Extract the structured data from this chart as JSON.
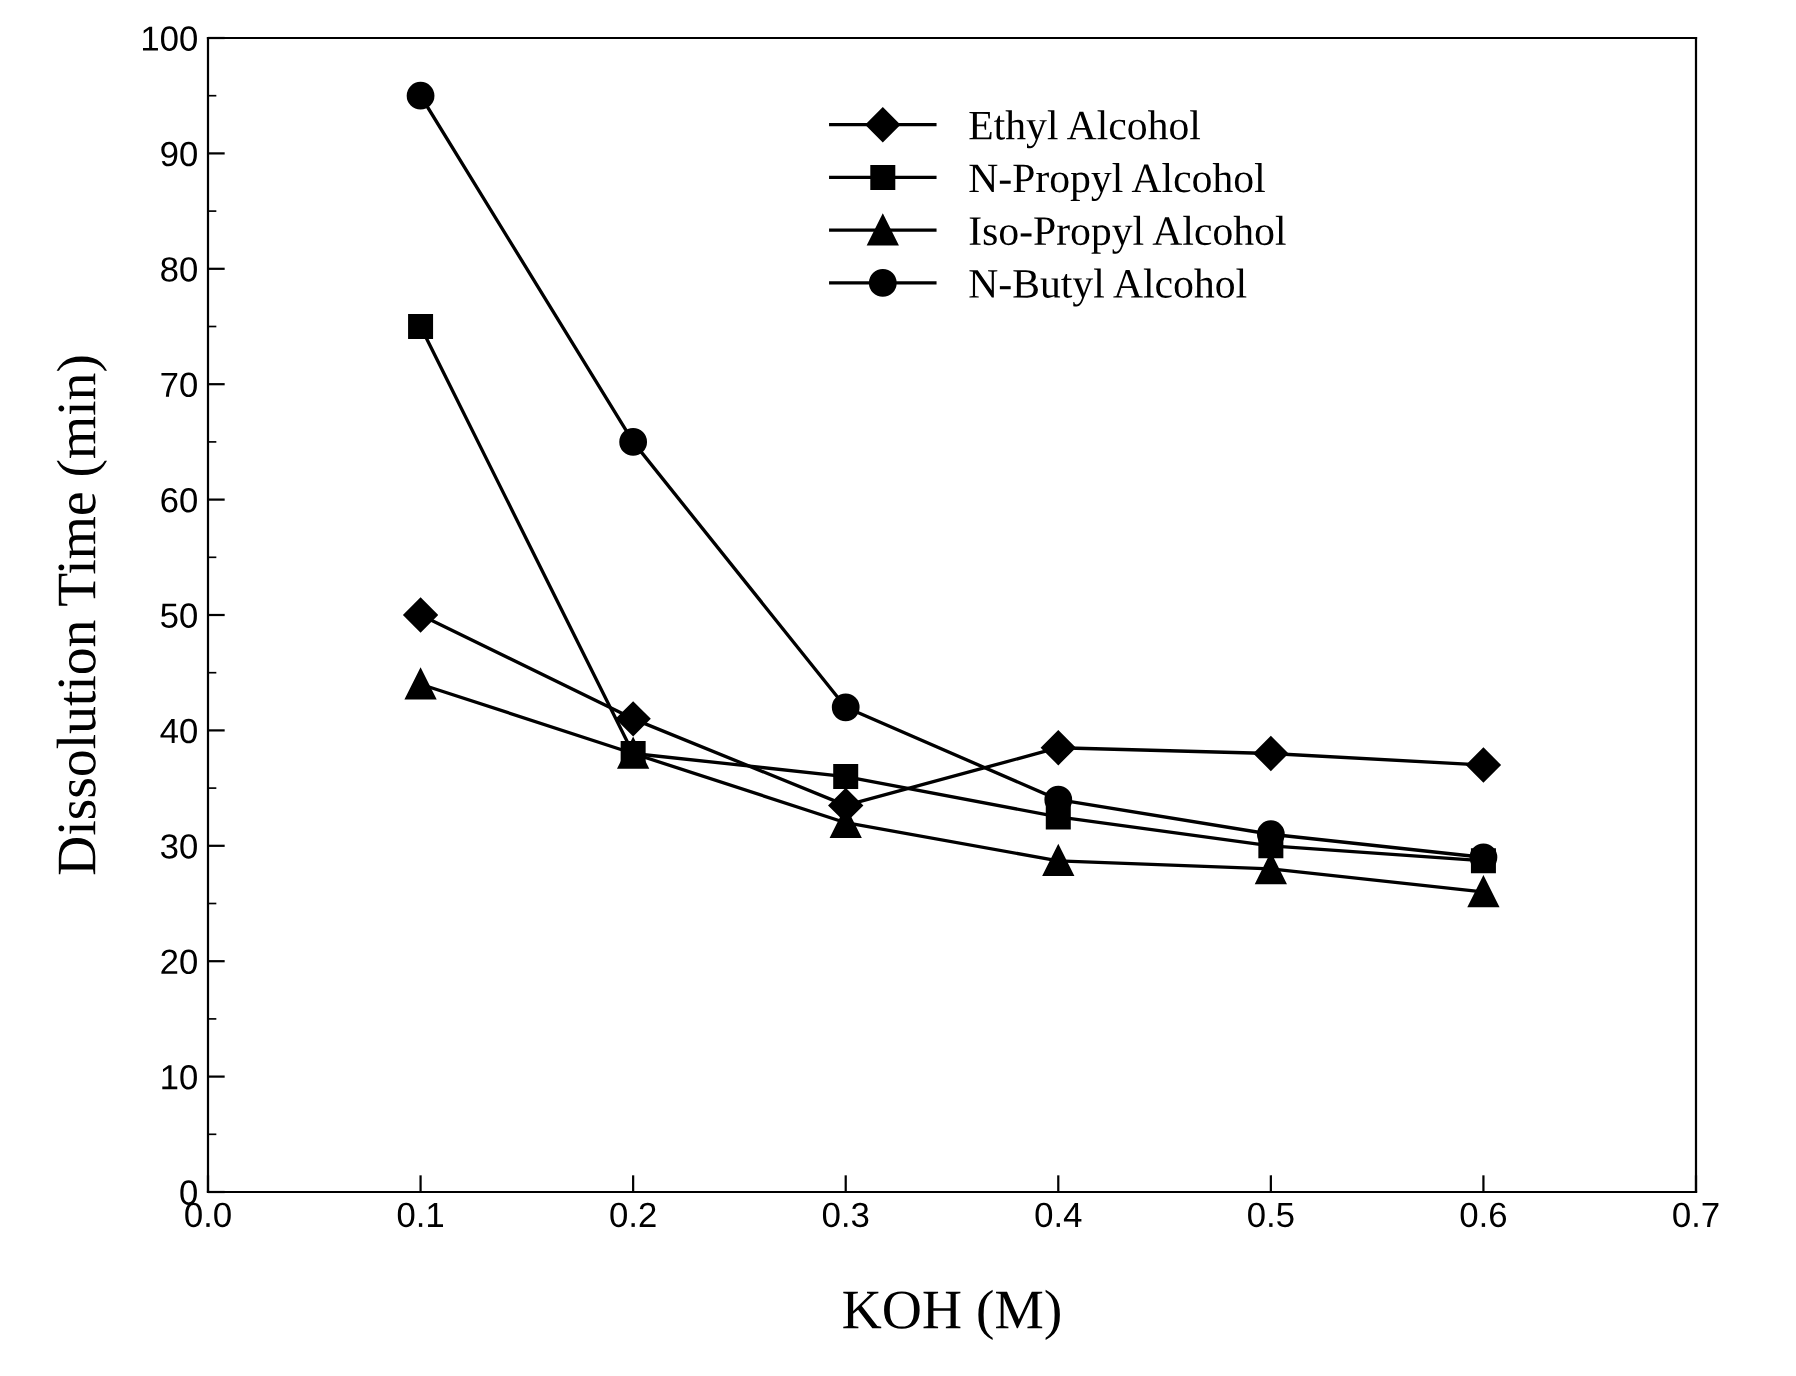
{
  "chart_data": {
    "type": "line",
    "xlabel": "KOH (M)",
    "ylabel": "Dissolution Time (min)",
    "x": [
      0.1,
      0.2,
      0.3,
      0.4,
      0.5,
      0.6
    ],
    "series": [
      {
        "name": "Ethyl Alcohol",
        "color": "#000000",
        "marker": "diamond",
        "values": [
          50,
          41,
          33.5,
          38.5,
          38,
          37
        ]
      },
      {
        "name": "N-Propyl Alcohol",
        "color": "#000000",
        "marker": "square",
        "values": [
          75,
          38,
          36,
          32.5,
          30,
          28.7
        ]
      },
      {
        "name": "Iso-Propyl Alcohol",
        "color": "#000000",
        "marker": "triangle",
        "values": [
          44,
          38,
          32,
          28.7,
          28,
          26
        ]
      },
      {
        "name": "N-Butyl Alcohol",
        "color": "#000000",
        "marker": "circle",
        "values": [
          95,
          65,
          42,
          34,
          31,
          29
        ]
      }
    ],
    "xlim": [
      0.0,
      0.7
    ],
    "ylim": [
      0,
      100
    ],
    "xticks": [
      {
        "value": 0.0,
        "label": "0.0"
      },
      0.1,
      0.2,
      0.3,
      0.4,
      0.5,
      0.6,
      0.7
    ],
    "yticks": [
      0,
      {
        "value": 5,
        "label": null
      },
      10,
      {
        "value": 15,
        "label": null
      },
      20,
      {
        "value": 25,
        "label": null
      },
      30,
      {
        "value": 35,
        "label": null
      },
      40,
      {
        "value": 45,
        "label": null
      },
      50,
      {
        "value": 55,
        "label": null
      },
      60,
      {
        "value": 65,
        "label": null
      },
      70,
      {
        "value": 75,
        "label": null
      },
      80,
      {
        "value": 85,
        "label": null
      },
      90,
      {
        "value": 95,
        "label": null
      },
      100
    ],
    "grid": false,
    "legend": "top right",
    "line_style": "solid"
  }
}
